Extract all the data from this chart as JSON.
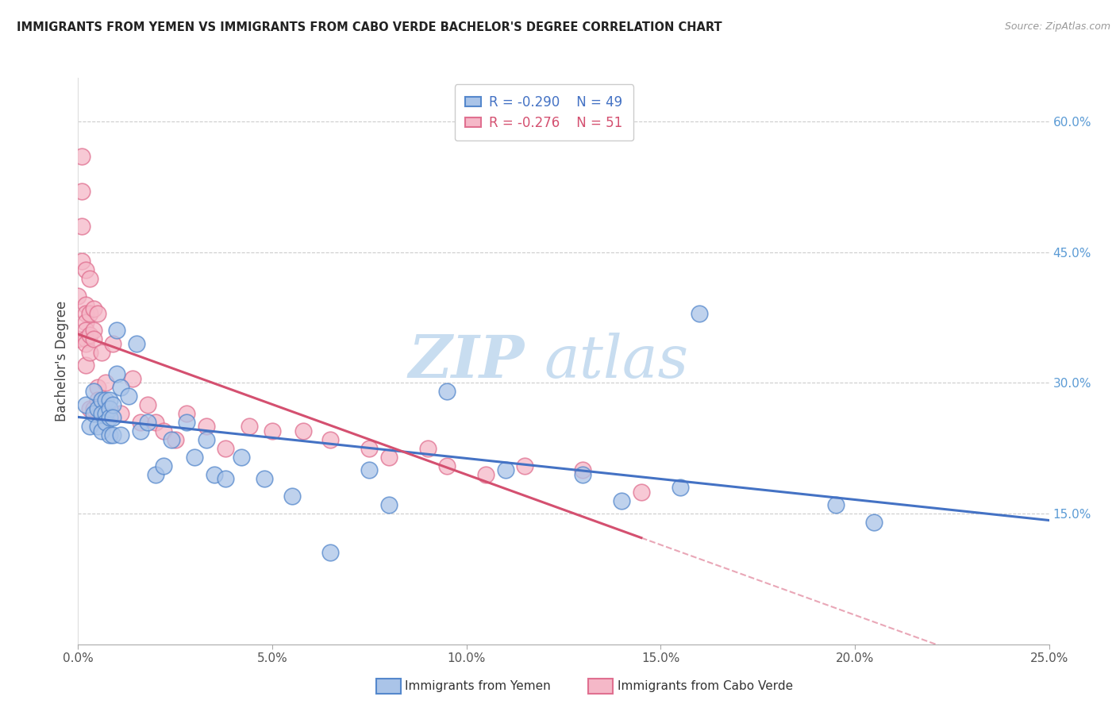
{
  "title": "IMMIGRANTS FROM YEMEN VS IMMIGRANTS FROM CABO VERDE BACHELOR'S DEGREE CORRELATION CHART",
  "source": "Source: ZipAtlas.com",
  "xlabel_ticks": [
    "0.0%",
    "5.0%",
    "10.0%",
    "15.0%",
    "20.0%",
    "25.0%"
  ],
  "ylabel_right_ticks": [
    "15.0%",
    "30.0%",
    "45.0%",
    "60.0%"
  ],
  "xmin": 0.0,
  "xmax": 0.25,
  "ymin": 0.0,
  "ymax": 0.65,
  "watermark_zip": "ZIP",
  "watermark_atlas": "atlas",
  "legend_r_yemen": "-0.290",
  "legend_n_yemen": "49",
  "legend_r_cabo": "-0.276",
  "legend_n_cabo": "51",
  "legend_label_yemen": "Immigrants from Yemen",
  "legend_label_cabo": "Immigrants from Cabo Verde",
  "color_yemen_fill": "#aac4e8",
  "color_yemen_edge": "#5588cc",
  "color_cabo_fill": "#f5b8c8",
  "color_cabo_edge": "#e07090",
  "color_line_yemen": "#4472c4",
  "color_line_cabo": "#d45070",
  "color_right_axis": "#5b9bd5",
  "color_grid": "#cccccc",
  "yemen_x": [
    0.002,
    0.003,
    0.004,
    0.004,
    0.005,
    0.005,
    0.006,
    0.006,
    0.006,
    0.007,
    0.007,
    0.007,
    0.008,
    0.008,
    0.008,
    0.008,
    0.009,
    0.009,
    0.009,
    0.01,
    0.01,
    0.011,
    0.011,
    0.013,
    0.015,
    0.016,
    0.018,
    0.02,
    0.022,
    0.024,
    0.028,
    0.03,
    0.033,
    0.035,
    0.038,
    0.042,
    0.048,
    0.055,
    0.065,
    0.075,
    0.08,
    0.095,
    0.11,
    0.13,
    0.14,
    0.155,
    0.16,
    0.195,
    0.205
  ],
  "yemen_y": [
    0.275,
    0.25,
    0.29,
    0.265,
    0.27,
    0.25,
    0.28,
    0.265,
    0.245,
    0.28,
    0.265,
    0.255,
    0.28,
    0.27,
    0.26,
    0.24,
    0.275,
    0.26,
    0.24,
    0.36,
    0.31,
    0.295,
    0.24,
    0.285,
    0.345,
    0.245,
    0.255,
    0.195,
    0.205,
    0.235,
    0.255,
    0.215,
    0.235,
    0.195,
    0.19,
    0.215,
    0.19,
    0.17,
    0.105,
    0.2,
    0.16,
    0.29,
    0.2,
    0.195,
    0.165,
    0.18,
    0.38,
    0.16,
    0.14
  ],
  "cabo_x": [
    0.0,
    0.0,
    0.001,
    0.001,
    0.001,
    0.001,
    0.002,
    0.002,
    0.002,
    0.002,
    0.002,
    0.002,
    0.002,
    0.002,
    0.003,
    0.003,
    0.003,
    0.003,
    0.003,
    0.004,
    0.004,
    0.004,
    0.004,
    0.005,
    0.005,
    0.005,
    0.006,
    0.007,
    0.009,
    0.011,
    0.014,
    0.016,
    0.018,
    0.02,
    0.022,
    0.025,
    0.028,
    0.033,
    0.038,
    0.044,
    0.05,
    0.058,
    0.065,
    0.075,
    0.08,
    0.09,
    0.095,
    0.105,
    0.115,
    0.13,
    0.145
  ],
  "cabo_y": [
    0.4,
    0.35,
    0.56,
    0.52,
    0.48,
    0.44,
    0.43,
    0.39,
    0.38,
    0.37,
    0.36,
    0.35,
    0.345,
    0.32,
    0.42,
    0.38,
    0.355,
    0.335,
    0.27,
    0.385,
    0.36,
    0.35,
    0.27,
    0.38,
    0.295,
    0.28,
    0.335,
    0.3,
    0.345,
    0.265,
    0.305,
    0.255,
    0.275,
    0.255,
    0.245,
    0.235,
    0.265,
    0.25,
    0.225,
    0.25,
    0.245,
    0.245,
    0.235,
    0.225,
    0.215,
    0.225,
    0.205,
    0.195,
    0.205,
    0.2,
    0.175
  ]
}
